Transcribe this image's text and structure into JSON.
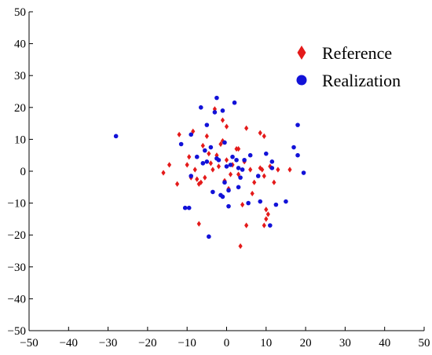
{
  "chart_data": {
    "type": "scatter",
    "title": "",
    "xlabel": "",
    "ylabel": "",
    "xlim": [
      -50,
      50
    ],
    "ylim": [
      -50,
      50
    ],
    "x_ticks": [
      -50,
      -40,
      -30,
      -20,
      -10,
      0,
      10,
      20,
      30,
      40,
      50
    ],
    "y_ticks": [
      -50,
      -40,
      -30,
      -20,
      -10,
      0,
      10,
      20,
      30,
      40,
      50
    ],
    "grid": false,
    "legend_position": "top-right",
    "series": [
      {
        "name": "Reference",
        "marker": "diamond",
        "color": "#e41a1a",
        "points": [
          [
            -16.0,
            -0.5
          ],
          [
            -14.5,
            2.0
          ],
          [
            -12.5,
            -4.0
          ],
          [
            -12.0,
            11.5
          ],
          [
            -10.0,
            2.0
          ],
          [
            -9.5,
            4.5
          ],
          [
            -9.0,
            -2.0
          ],
          [
            -8.5,
            12.5
          ],
          [
            -8.0,
            0.5
          ],
          [
            -7.5,
            -2.5
          ],
          [
            -7.0,
            -16.5
          ],
          [
            -7.0,
            -4.0
          ],
          [
            -6.5,
            -3.5
          ],
          [
            -6.0,
            8.0
          ],
          [
            -5.5,
            -2.0
          ],
          [
            -5.0,
            11.0
          ],
          [
            -4.5,
            5.5
          ],
          [
            -4.0,
            2.5
          ],
          [
            -3.5,
            0.5
          ],
          [
            -3.0,
            19.5
          ],
          [
            -2.5,
            5.0
          ],
          [
            -2.0,
            1.5
          ],
          [
            -1.5,
            8.5
          ],
          [
            -1.0,
            16.0
          ],
          [
            -0.5,
            -3.0
          ],
          [
            0.0,
            14.0
          ],
          [
            0.5,
            -5.5
          ],
          [
            1.0,
            -1.0
          ],
          [
            1.5,
            2.0
          ],
          [
            2.5,
            7.0
          ],
          [
            3.0,
            7.0
          ],
          [
            3.0,
            -1.0
          ],
          [
            3.5,
            -23.5
          ],
          [
            4.0,
            -10.5
          ],
          [
            4.5,
            3.0
          ],
          [
            5.0,
            13.5
          ],
          [
            5.0,
            -17.0
          ],
          [
            6.0,
            0.5
          ],
          [
            6.5,
            -7.0
          ],
          [
            7.0,
            -3.5
          ],
          [
            8.5,
            12.0
          ],
          [
            8.5,
            1.0
          ],
          [
            9.0,
            0.5
          ],
          [
            9.5,
            11.0
          ],
          [
            9.5,
            -17.0
          ],
          [
            10.0,
            -12.0
          ],
          [
            10.5,
            -13.5
          ],
          [
            10.0,
            -15.0
          ],
          [
            11.0,
            1.5
          ],
          [
            12.0,
            -3.5
          ],
          [
            13.0,
            0.5
          ],
          [
            16.0,
            0.5
          ],
          [
            9.5,
            -1.5
          ],
          [
            -1.0,
            9.5
          ],
          [
            0.0,
            3.5
          ]
        ]
      },
      {
        "name": "Realization",
        "marker": "circle",
        "color": "#1212d8",
        "points": [
          [
            -28.0,
            11.0
          ],
          [
            -11.5,
            8.5
          ],
          [
            -10.5,
            -11.5
          ],
          [
            -9.5,
            -11.5
          ],
          [
            -9.0,
            11.5
          ],
          [
            -9.0,
            -1.5
          ],
          [
            -7.5,
            4.5
          ],
          [
            -6.5,
            20.0
          ],
          [
            -6.0,
            2.5
          ],
          [
            -5.0,
            14.5
          ],
          [
            -5.0,
            3.0
          ],
          [
            -4.5,
            -20.5
          ],
          [
            -4.0,
            7.5
          ],
          [
            -3.5,
            -6.5
          ],
          [
            -3.0,
            18.5
          ],
          [
            -2.5,
            23.0
          ],
          [
            -2.5,
            4.0
          ],
          [
            -2.0,
            3.5
          ],
          [
            -1.5,
            -7.5
          ],
          [
            -1.0,
            19.0
          ],
          [
            -1.0,
            -8.0
          ],
          [
            -0.5,
            9.0
          ],
          [
            0.0,
            1.5
          ],
          [
            0.5,
            -11.0
          ],
          [
            0.5,
            -6.0
          ],
          [
            1.0,
            2.0
          ],
          [
            1.5,
            4.5
          ],
          [
            2.0,
            21.5
          ],
          [
            2.5,
            3.5
          ],
          [
            3.0,
            1.0
          ],
          [
            3.0,
            -5.0
          ],
          [
            3.5,
            -2.0
          ],
          [
            4.5,
            3.5
          ],
          [
            5.5,
            -10.0
          ],
          [
            6.0,
            5.0
          ],
          [
            8.5,
            -9.5
          ],
          [
            10.0,
            5.5
          ],
          [
            11.0,
            -17.0
          ],
          [
            11.5,
            1.0
          ],
          [
            11.5,
            3.0
          ],
          [
            12.5,
            -10.5
          ],
          [
            15.0,
            -9.5
          ],
          [
            17.0,
            7.5
          ],
          [
            18.0,
            14.5
          ],
          [
            18.0,
            5.0
          ],
          [
            19.5,
            -0.5
          ],
          [
            -5.5,
            6.5
          ],
          [
            -0.5,
            -3.5
          ],
          [
            4.0,
            0.5
          ],
          [
            8.0,
            -1.5
          ]
        ]
      }
    ]
  }
}
